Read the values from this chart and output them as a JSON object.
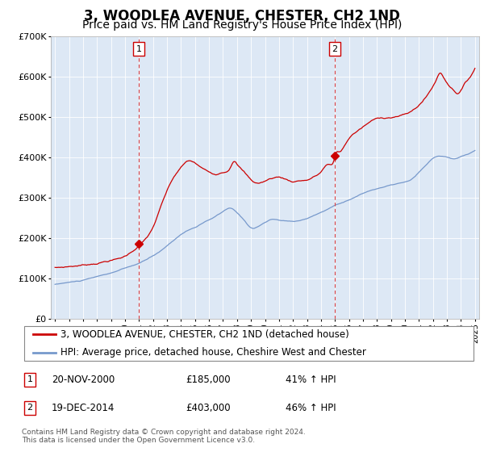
{
  "title": "3, WOODLEA AVENUE, CHESTER, CH2 1ND",
  "subtitle": "Price paid vs. HM Land Registry's House Price Index (HPI)",
  "title_fontsize": 12,
  "subtitle_fontsize": 10,
  "background_color": "#ffffff",
  "plot_bg_color": "#dde8f5",
  "ylim": [
    0,
    700000
  ],
  "yticks": [
    0,
    100000,
    200000,
    300000,
    400000,
    500000,
    600000,
    700000
  ],
  "ytick_labels": [
    "£0",
    "£100K",
    "£200K",
    "£300K",
    "£400K",
    "£500K",
    "£600K",
    "£700K"
  ],
  "xlim_start": 1994.7,
  "xlim_end": 2025.3,
  "xticks": [
    1995,
    1996,
    1997,
    1998,
    1999,
    2000,
    2001,
    2002,
    2003,
    2004,
    2005,
    2006,
    2007,
    2008,
    2009,
    2010,
    2011,
    2012,
    2013,
    2014,
    2015,
    2016,
    2017,
    2018,
    2019,
    2020,
    2021,
    2022,
    2023,
    2024,
    2025
  ],
  "grid_color": "#ffffff",
  "red_line_color": "#cc0000",
  "blue_line_color": "#7799cc",
  "dashed_line_color": "#dd4444",
  "marker1_x": 2001.0,
  "marker1_y": 185000,
  "marker2_x": 2014.97,
  "marker2_y": 403000,
  "legend_label_red": "3, WOODLEA AVENUE, CHESTER, CH2 1ND (detached house)",
  "legend_label_blue": "HPI: Average price, detached house, Cheshire West and Chester",
  "table_entries": [
    {
      "num": "1",
      "date": "20-NOV-2000",
      "price": "£185,000",
      "change": "41% ↑ HPI"
    },
    {
      "num": "2",
      "date": "19-DEC-2014",
      "price": "£403,000",
      "change": "46% ↑ HPI"
    }
  ],
  "footer": "Contains HM Land Registry data © Crown copyright and database right 2024.\nThis data is licensed under the Open Government Licence v3.0."
}
